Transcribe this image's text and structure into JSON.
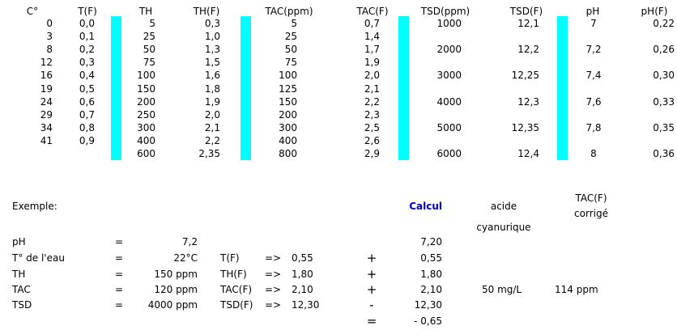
{
  "table": {
    "header": [
      "C°",
      "T(F)",
      "TH",
      "TH(F)",
      "TAC(ppm)",
      "TAC(F)",
      "TSD(ppm)",
      "TSD(F)",
      "pH",
      "pH(F)"
    ],
    "rows": [
      [
        "0",
        "0,0",
        "5",
        "0,3",
        "5",
        "0,7",
        "1000",
        "12,1",
        "7",
        "0,22"
      ],
      [
        "3",
        "0,1",
        "25",
        "1,0",
        "25",
        "1,4",
        null,
        null,
        null,
        null
      ],
      [
        "8",
        "0,2",
        "50",
        "1,3",
        "50",
        "1,7",
        "2000",
        "12,2",
        "7,2",
        "0,26"
      ],
      [
        "12",
        "0,3",
        "75",
        "1,5",
        "75",
        "1,9",
        null,
        null,
        null,
        null
      ],
      [
        "16",
        "0,4",
        "100",
        "1,6",
        "100",
        "2,0",
        "3000",
        "12,25",
        "7,4",
        "0,30"
      ],
      [
        "19",
        "0,5",
        "150",
        "1,8",
        "125",
        "2,1",
        null,
        null,
        null,
        null
      ],
      [
        "24",
        "0,6",
        "200",
        "1,9",
        "150",
        "2,2",
        "4000",
        "12,3",
        "7,6",
        "0,33"
      ],
      [
        "29",
        "0,7",
        "250",
        "2,0",
        "200",
        "2,3",
        null,
        null,
        null,
        null
      ],
      [
        "34",
        "0,8",
        "300",
        "2,1",
        "300",
        "2,5",
        "5000",
        "12,35",
        "7,8",
        "0,35"
      ],
      [
        "41",
        "0,9",
        "400",
        "2,2",
        "400",
        "2,6",
        null,
        null,
        null,
        null
      ],
      [
        null,
        null,
        "600",
        "2,35",
        "800",
        "2,9",
        "6000",
        "12,4",
        "8",
        "0,36"
      ]
    ]
  },
  "example": {
    "title": "Exemple:",
    "calc_header": "Calcul",
    "acid_header": [
      "acide",
      "cyanurique"
    ],
    "tac_header": [
      "TAC(F)",
      "corrigé"
    ],
    "rows": [
      {
        "label": "pH",
        "eq": "=",
        "value": "7,2",
        "result": "7,20"
      },
      {
        "label": "T° de l'eau",
        "eq": "=",
        "value": "22°C",
        "param": "T(F)",
        "arrow": "=>",
        "param_value": "0,55",
        "op": "+",
        "result": "0,55"
      },
      {
        "label": "TH",
        "eq": "=",
        "value": "150 ppm",
        "param": "TH(F)",
        "arrow": "=>",
        "param_value": "1,80",
        "op": "+",
        "result": "1,80"
      },
      {
        "label": "TAC",
        "eq": "=",
        "value": "120 ppm",
        "param": "TAC(F)",
        "arrow": "=>",
        "param_value": "2,10",
        "op": "+",
        "result": "2,10",
        "acid": "50 mg/L",
        "tac_corrected": "114 ppm"
      },
      {
        "label": "TSD",
        "eq": "=",
        "value": "4000 ppm",
        "param": "TSD(F)",
        "arrow": "=>",
        "param_value": "12,30",
        "op": "-",
        "result": "12,30"
      },
      {
        "op": "=",
        "result": "- 0,65"
      }
    ]
  }
}
